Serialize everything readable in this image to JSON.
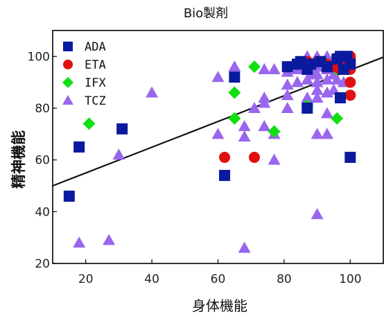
{
  "chart_data": {
    "type": "scatter",
    "title": "Bio製剤",
    "xlabel": "身体機能",
    "ylabel": "精神機能",
    "xlim": [
      10,
      110
    ],
    "ylim": [
      20,
      110
    ],
    "xticks": [
      20,
      40,
      60,
      80,
      100
    ],
    "yticks": [
      20,
      40,
      60,
      80,
      100
    ],
    "grid": false,
    "legend_position": "top-left",
    "series": [
      {
        "name": "ADA",
        "marker": "square",
        "color": "#0a1a9e",
        "points": [
          [
            15,
            46
          ],
          [
            18,
            65
          ],
          [
            31,
            72
          ],
          [
            62,
            54
          ],
          [
            65,
            92
          ],
          [
            81,
            96
          ],
          [
            84,
            97
          ],
          [
            85,
            98
          ],
          [
            87,
            95
          ],
          [
            87,
            80
          ],
          [
            88,
            97
          ],
          [
            91,
            98
          ],
          [
            93,
            96
          ],
          [
            96,
            99
          ],
          [
            97,
            100
          ],
          [
            97,
            84
          ],
          [
            98,
            95
          ],
          [
            99,
            100
          ],
          [
            100,
            61
          ],
          [
            100,
            97
          ]
        ]
      },
      {
        "name": "ETA",
        "marker": "circle",
        "color": "#e01010",
        "points": [
          [
            62,
            61
          ],
          [
            71,
            61
          ],
          [
            87,
            98
          ],
          [
            90,
            98
          ],
          [
            93,
            97
          ],
          [
            95,
            96
          ],
          [
            96,
            98
          ],
          [
            97,
            95
          ],
          [
            97,
            99
          ],
          [
            99,
            96
          ],
          [
            100,
            100
          ],
          [
            100,
            99
          ],
          [
            100,
            95
          ],
          [
            100,
            90
          ],
          [
            100,
            85
          ]
        ]
      },
      {
        "name": "IFX",
        "marker": "diamond",
        "color": "#10e010",
        "points": [
          [
            21,
            74
          ],
          [
            65,
            86
          ],
          [
            65,
            76
          ],
          [
            71,
            96
          ],
          [
            77,
            71
          ],
          [
            87,
            81
          ],
          [
            96,
            95
          ],
          [
            96,
            76
          ]
        ]
      },
      {
        "name": "TCZ",
        "marker": "triangle",
        "color": "#9966ee",
        "points": [
          [
            18,
            28
          ],
          [
            27,
            29
          ],
          [
            30,
            62
          ],
          [
            40,
            86
          ],
          [
            60,
            92
          ],
          [
            60,
            70
          ],
          [
            65,
            96
          ],
          [
            68,
            26
          ],
          [
            68,
            73
          ],
          [
            68,
            69
          ],
          [
            71,
            80
          ],
          [
            74,
            84
          ],
          [
            74,
            82
          ],
          [
            74,
            73
          ],
          [
            74,
            95
          ],
          [
            77,
            95
          ],
          [
            77,
            70
          ],
          [
            77,
            60
          ],
          [
            81,
            94
          ],
          [
            81,
            89
          ],
          [
            81,
            85
          ],
          [
            81,
            80
          ],
          [
            84,
            95
          ],
          [
            84,
            90
          ],
          [
            87,
            100
          ],
          [
            87,
            91
          ],
          [
            87,
            84
          ],
          [
            88,
            93
          ],
          [
            88,
            95
          ],
          [
            90,
            100
          ],
          [
            90,
            96
          ],
          [
            90,
            93
          ],
          [
            90,
            90
          ],
          [
            90,
            87
          ],
          [
            90,
            84
          ],
          [
            90,
            70
          ],
          [
            90,
            39
          ],
          [
            93,
            100
          ],
          [
            93,
            95
          ],
          [
            93,
            91
          ],
          [
            93,
            86
          ],
          [
            93,
            70
          ],
          [
            93,
            78
          ],
          [
            95,
            99
          ],
          [
            95,
            93
          ],
          [
            95,
            87
          ],
          [
            96,
            91
          ],
          [
            98,
            98
          ],
          [
            98,
            90
          ],
          [
            100,
            97
          ]
        ]
      }
    ],
    "trendline": {
      "x": [
        10,
        110
      ],
      "y": [
        50,
        99.7
      ]
    }
  }
}
